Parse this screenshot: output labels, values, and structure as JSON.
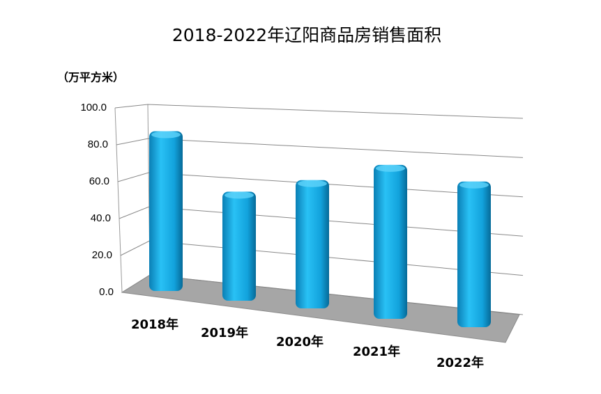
{
  "chart_data": {
    "type": "bar3d",
    "title": "2018-2022年辽阳商品房销售面积",
    "y_label": "（万平方米）",
    "categories": [
      "2018年",
      "2019年",
      "2020年",
      "2021年",
      "2022年"
    ],
    "values": [
      90,
      60,
      69,
      81,
      75
    ],
    "color": "#1aa7e0",
    "ylim": [
      0,
      100
    ],
    "yticks": [
      {
        "value": 0,
        "label": "0.0"
      },
      {
        "value": 20,
        "label": "20.0"
      },
      {
        "value": 40,
        "label": "40.0"
      },
      {
        "value": 60,
        "label": "60.0"
      },
      {
        "value": 80,
        "label": "80.0"
      },
      {
        "value": 100,
        "label": "100.0"
      }
    ],
    "grid": true
  }
}
